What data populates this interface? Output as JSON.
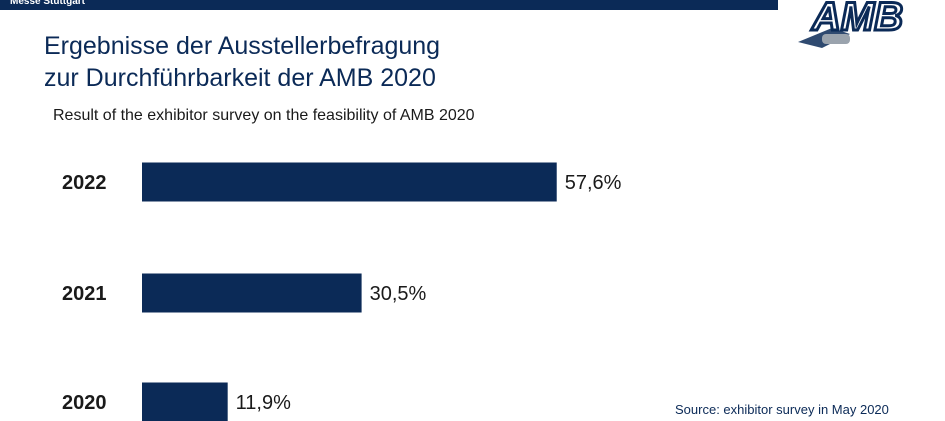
{
  "header": {
    "bar_text": "Messe Stuttgart",
    "logo_text": "AMB"
  },
  "title_line1": "Ergebnisse der Ausstellerbefragung",
  "title_line2": "zur Durchführbarkeit der AMB 2020",
  "subtitle": "Result of the exhibitor survey on the feasibility of AMB 2020",
  "source": "Source:  exhibitor survey in May 2020",
  "colors": {
    "bar": "#0b2a57",
    "text": "#1a1a1a",
    "title": "#0b2a57"
  },
  "chart_data": {
    "type": "bar",
    "orientation": "horizontal",
    "categories": [
      "2022",
      "2021",
      "2020"
    ],
    "values": [
      57.6,
      30.5,
      11.9
    ],
    "value_labels": [
      "57,6%",
      "30,5%",
      "11,9%"
    ],
    "unit": "%",
    "title": "Ergebnisse der Ausstellerbefragung zur Durchführbarkeit der AMB 2020",
    "subtitle": "Result of the exhibitor survey on the feasibility of AMB 2020",
    "xlabel": "",
    "ylabel": "",
    "grid": false,
    "legend": "none"
  }
}
